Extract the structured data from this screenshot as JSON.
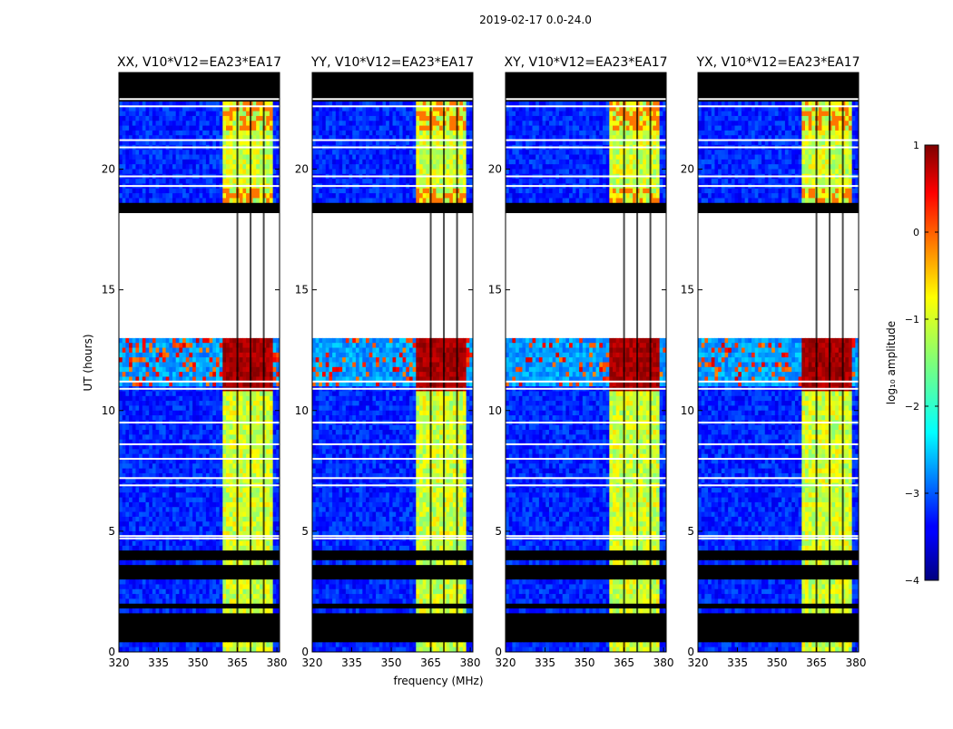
{
  "chart_data": {
    "type": "heatmap",
    "suptitle": "2019-02-17 0.0-24.0",
    "xlabel": "frequency (MHz)",
    "ylabel": "UT (hours)",
    "xlim": [
      320,
      381
    ],
    "ylim": [
      0,
      24
    ],
    "xticks": [
      320,
      335,
      350,
      365,
      380
    ],
    "yticks": [
      0,
      5,
      10,
      15,
      20
    ],
    "panels": [
      {
        "title": "XX, V10*V12=EA23*EA17",
        "variant": "XX"
      },
      {
        "title": "YY, V10*V12=EA23*EA17",
        "variant": "YY"
      },
      {
        "title": "XY, V10*V12=EA23*EA17",
        "variant": "XY"
      },
      {
        "title": "YX, V10*V12=EA23*EA17",
        "variant": "YX"
      }
    ],
    "colorbar": {
      "label": "log₁₀ amplitude",
      "colormap": "jet",
      "vmin": -4,
      "vmax": 1,
      "ticks": [
        1,
        0,
        -1,
        -2,
        -3,
        -4
      ]
    },
    "flagged_time_ranges": [
      [
        22.8,
        24.0
      ],
      [
        18.3,
        18.5
      ],
      [
        13.0,
        18.3
      ],
      [
        4.0,
        4.2
      ],
      [
        3.8,
        3.9
      ],
      [
        3.1,
        3.6
      ],
      [
        1.7,
        1.9
      ],
      [
        1.0,
        1.5
      ],
      [
        0.5,
        0.9
      ]
    ],
    "white_time_lines": [
      22.6,
      22.9,
      21.2,
      20.9,
      19.3,
      19.7,
      11.2,
      10.9,
      9.5,
      8.6,
      8.0,
      7.2,
      6.9,
      4.7,
      4.8
    ],
    "bright_band_mhz": [
      360,
      379
    ],
    "bright_band_gaps_mhz": [
      365,
      370,
      375
    ]
  }
}
